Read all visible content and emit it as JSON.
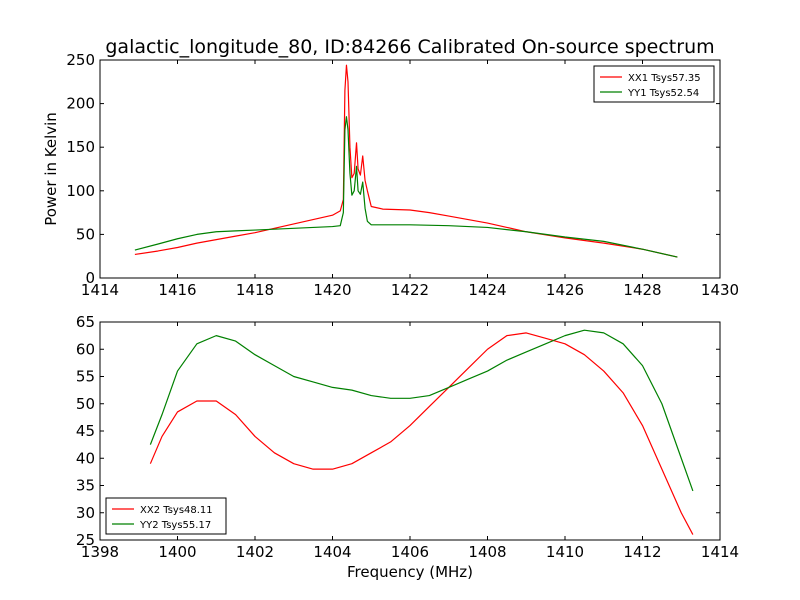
{
  "title": "galactic_longitude_80, ID:84266 Calibrated On-source spectrum",
  "colors": {
    "xx": "#ff0000",
    "yy": "#008000",
    "axes": "#000000",
    "background": "#ffffff"
  },
  "chart_data": [
    {
      "type": "line",
      "title": "galactic_longitude_80, ID:84266 Calibrated On-source spectrum",
      "xlabel": "",
      "ylabel": "Power in Kelvin",
      "xlim": [
        1414,
        1430
      ],
      "ylim": [
        0,
        250
      ],
      "xticks": [
        "1414",
        "1416",
        "1418",
        "1420",
        "1422",
        "1424",
        "1426",
        "1428",
        "1430"
      ],
      "yticks": [
        "0",
        "50",
        "100",
        "150",
        "200",
        "250"
      ],
      "legend_position": "top-right",
      "grid": false,
      "series": [
        {
          "name": "XX1 Tsys57.35",
          "color": "#ff0000",
          "points": [
            [
              1414.9,
              27
            ],
            [
              1415.5,
              31
            ],
            [
              1416,
              35
            ],
            [
              1416.5,
              40
            ],
            [
              1417,
              44
            ],
            [
              1417.5,
              48
            ],
            [
              1418,
              52
            ],
            [
              1418.5,
              57
            ],
            [
              1419,
              62
            ],
            [
              1419.5,
              67
            ],
            [
              1420,
              72
            ],
            [
              1420.2,
              77
            ],
            [
              1420.28,
              90
            ],
            [
              1420.32,
              215
            ],
            [
              1420.36,
              244
            ],
            [
              1420.4,
              225
            ],
            [
              1420.45,
              150
            ],
            [
              1420.5,
              115
            ],
            [
              1420.56,
              120
            ],
            [
              1420.62,
              155
            ],
            [
              1420.66,
              125
            ],
            [
              1420.72,
              118
            ],
            [
              1420.78,
              140
            ],
            [
              1420.84,
              112
            ],
            [
              1420.9,
              100
            ],
            [
              1421,
              82
            ],
            [
              1421.3,
              79
            ],
            [
              1422,
              78
            ],
            [
              1422.5,
              75
            ],
            [
              1423,
              71
            ],
            [
              1424,
              63
            ],
            [
              1424.5,
              58
            ],
            [
              1425,
              53
            ],
            [
              1426,
              46
            ],
            [
              1427,
              40
            ],
            [
              1428,
              33
            ],
            [
              1428.9,
              24
            ]
          ]
        },
        {
          "name": "YY1 Tsys52.54",
          "color": "#008000",
          "points": [
            [
              1414.9,
              32
            ],
            [
              1415.5,
              39
            ],
            [
              1416,
              45
            ],
            [
              1416.5,
              50
            ],
            [
              1417,
              53
            ],
            [
              1417.5,
              54
            ],
            [
              1418,
              55
            ],
            [
              1418.5,
              56
            ],
            [
              1419,
              57
            ],
            [
              1419.5,
              58
            ],
            [
              1420,
              59
            ],
            [
              1420.2,
              60
            ],
            [
              1420.28,
              75
            ],
            [
              1420.32,
              170
            ],
            [
              1420.36,
              185
            ],
            [
              1420.4,
              170
            ],
            [
              1420.45,
              120
            ],
            [
              1420.5,
              95
            ],
            [
              1420.56,
              100
            ],
            [
              1420.62,
              128
            ],
            [
              1420.66,
              100
            ],
            [
              1420.72,
              96
            ],
            [
              1420.78,
              110
            ],
            [
              1420.84,
              80
            ],
            [
              1420.9,
              65
            ],
            [
              1421,
              61
            ],
            [
              1422,
              61
            ],
            [
              1423,
              60
            ],
            [
              1424,
              58
            ],
            [
              1425,
              53
            ],
            [
              1426,
              47
            ],
            [
              1427,
              42
            ],
            [
              1428,
              33
            ],
            [
              1428.9,
              24
            ]
          ]
        }
      ]
    },
    {
      "type": "line",
      "title": "",
      "xlabel": "Frequency (MHz)",
      "ylabel": "",
      "xlim": [
        1398,
        1414
      ],
      "ylim": [
        25,
        65
      ],
      "xticks": [
        "1398",
        "1400",
        "1402",
        "1404",
        "1406",
        "1408",
        "1410",
        "1412",
        "1414"
      ],
      "yticks": [
        "25",
        "30",
        "35",
        "40",
        "45",
        "50",
        "55",
        "60",
        "65"
      ],
      "legend_position": "bottom-left",
      "grid": false,
      "series": [
        {
          "name": "XX2 Tsys48.11",
          "color": "#ff0000",
          "points": [
            [
              1399.3,
              39
            ],
            [
              1399.6,
              44
            ],
            [
              1400,
              48.5
            ],
            [
              1400.5,
              50.5
            ],
            [
              1401,
              50.5
            ],
            [
              1401.5,
              48
            ],
            [
              1402,
              44
            ],
            [
              1402.5,
              41
            ],
            [
              1403,
              39
            ],
            [
              1403.5,
              38
            ],
            [
              1404,
              38
            ],
            [
              1404.5,
              39
            ],
            [
              1405,
              41
            ],
            [
              1405.5,
              43
            ],
            [
              1406,
              46
            ],
            [
              1406.5,
              49.5
            ],
            [
              1407,
              53
            ],
            [
              1407.5,
              56.5
            ],
            [
              1408,
              60
            ],
            [
              1408.5,
              62.5
            ],
            [
              1409,
              63
            ],
            [
              1409.5,
              62
            ],
            [
              1410,
              61
            ],
            [
              1410.5,
              59
            ],
            [
              1411,
              56
            ],
            [
              1411.5,
              52
            ],
            [
              1412,
              46
            ],
            [
              1412.5,
              38
            ],
            [
              1413,
              30
            ],
            [
              1413.3,
              26
            ]
          ]
        },
        {
          "name": "YY2 Tsys55.17",
          "color": "#008000",
          "points": [
            [
              1399.3,
              42.5
            ],
            [
              1399.6,
              48
            ],
            [
              1400,
              56
            ],
            [
              1400.5,
              61
            ],
            [
              1401,
              62.5
            ],
            [
              1401.5,
              61.5
            ],
            [
              1402,
              59
            ],
            [
              1402.5,
              57
            ],
            [
              1403,
              55
            ],
            [
              1403.5,
              54
            ],
            [
              1404,
              53
            ],
            [
              1404.5,
              52.5
            ],
            [
              1405,
              51.5
            ],
            [
              1405.5,
              51
            ],
            [
              1406,
              51
            ],
            [
              1406.5,
              51.5
            ],
            [
              1407,
              53
            ],
            [
              1407.5,
              54.5
            ],
            [
              1408,
              56
            ],
            [
              1408.5,
              58
            ],
            [
              1409,
              59.5
            ],
            [
              1409.5,
              61
            ],
            [
              1410,
              62.5
            ],
            [
              1410.5,
              63.5
            ],
            [
              1411,
              63
            ],
            [
              1411.5,
              61
            ],
            [
              1412,
              57
            ],
            [
              1412.5,
              50
            ],
            [
              1413,
              40
            ],
            [
              1413.3,
              34
            ]
          ]
        }
      ]
    }
  ]
}
